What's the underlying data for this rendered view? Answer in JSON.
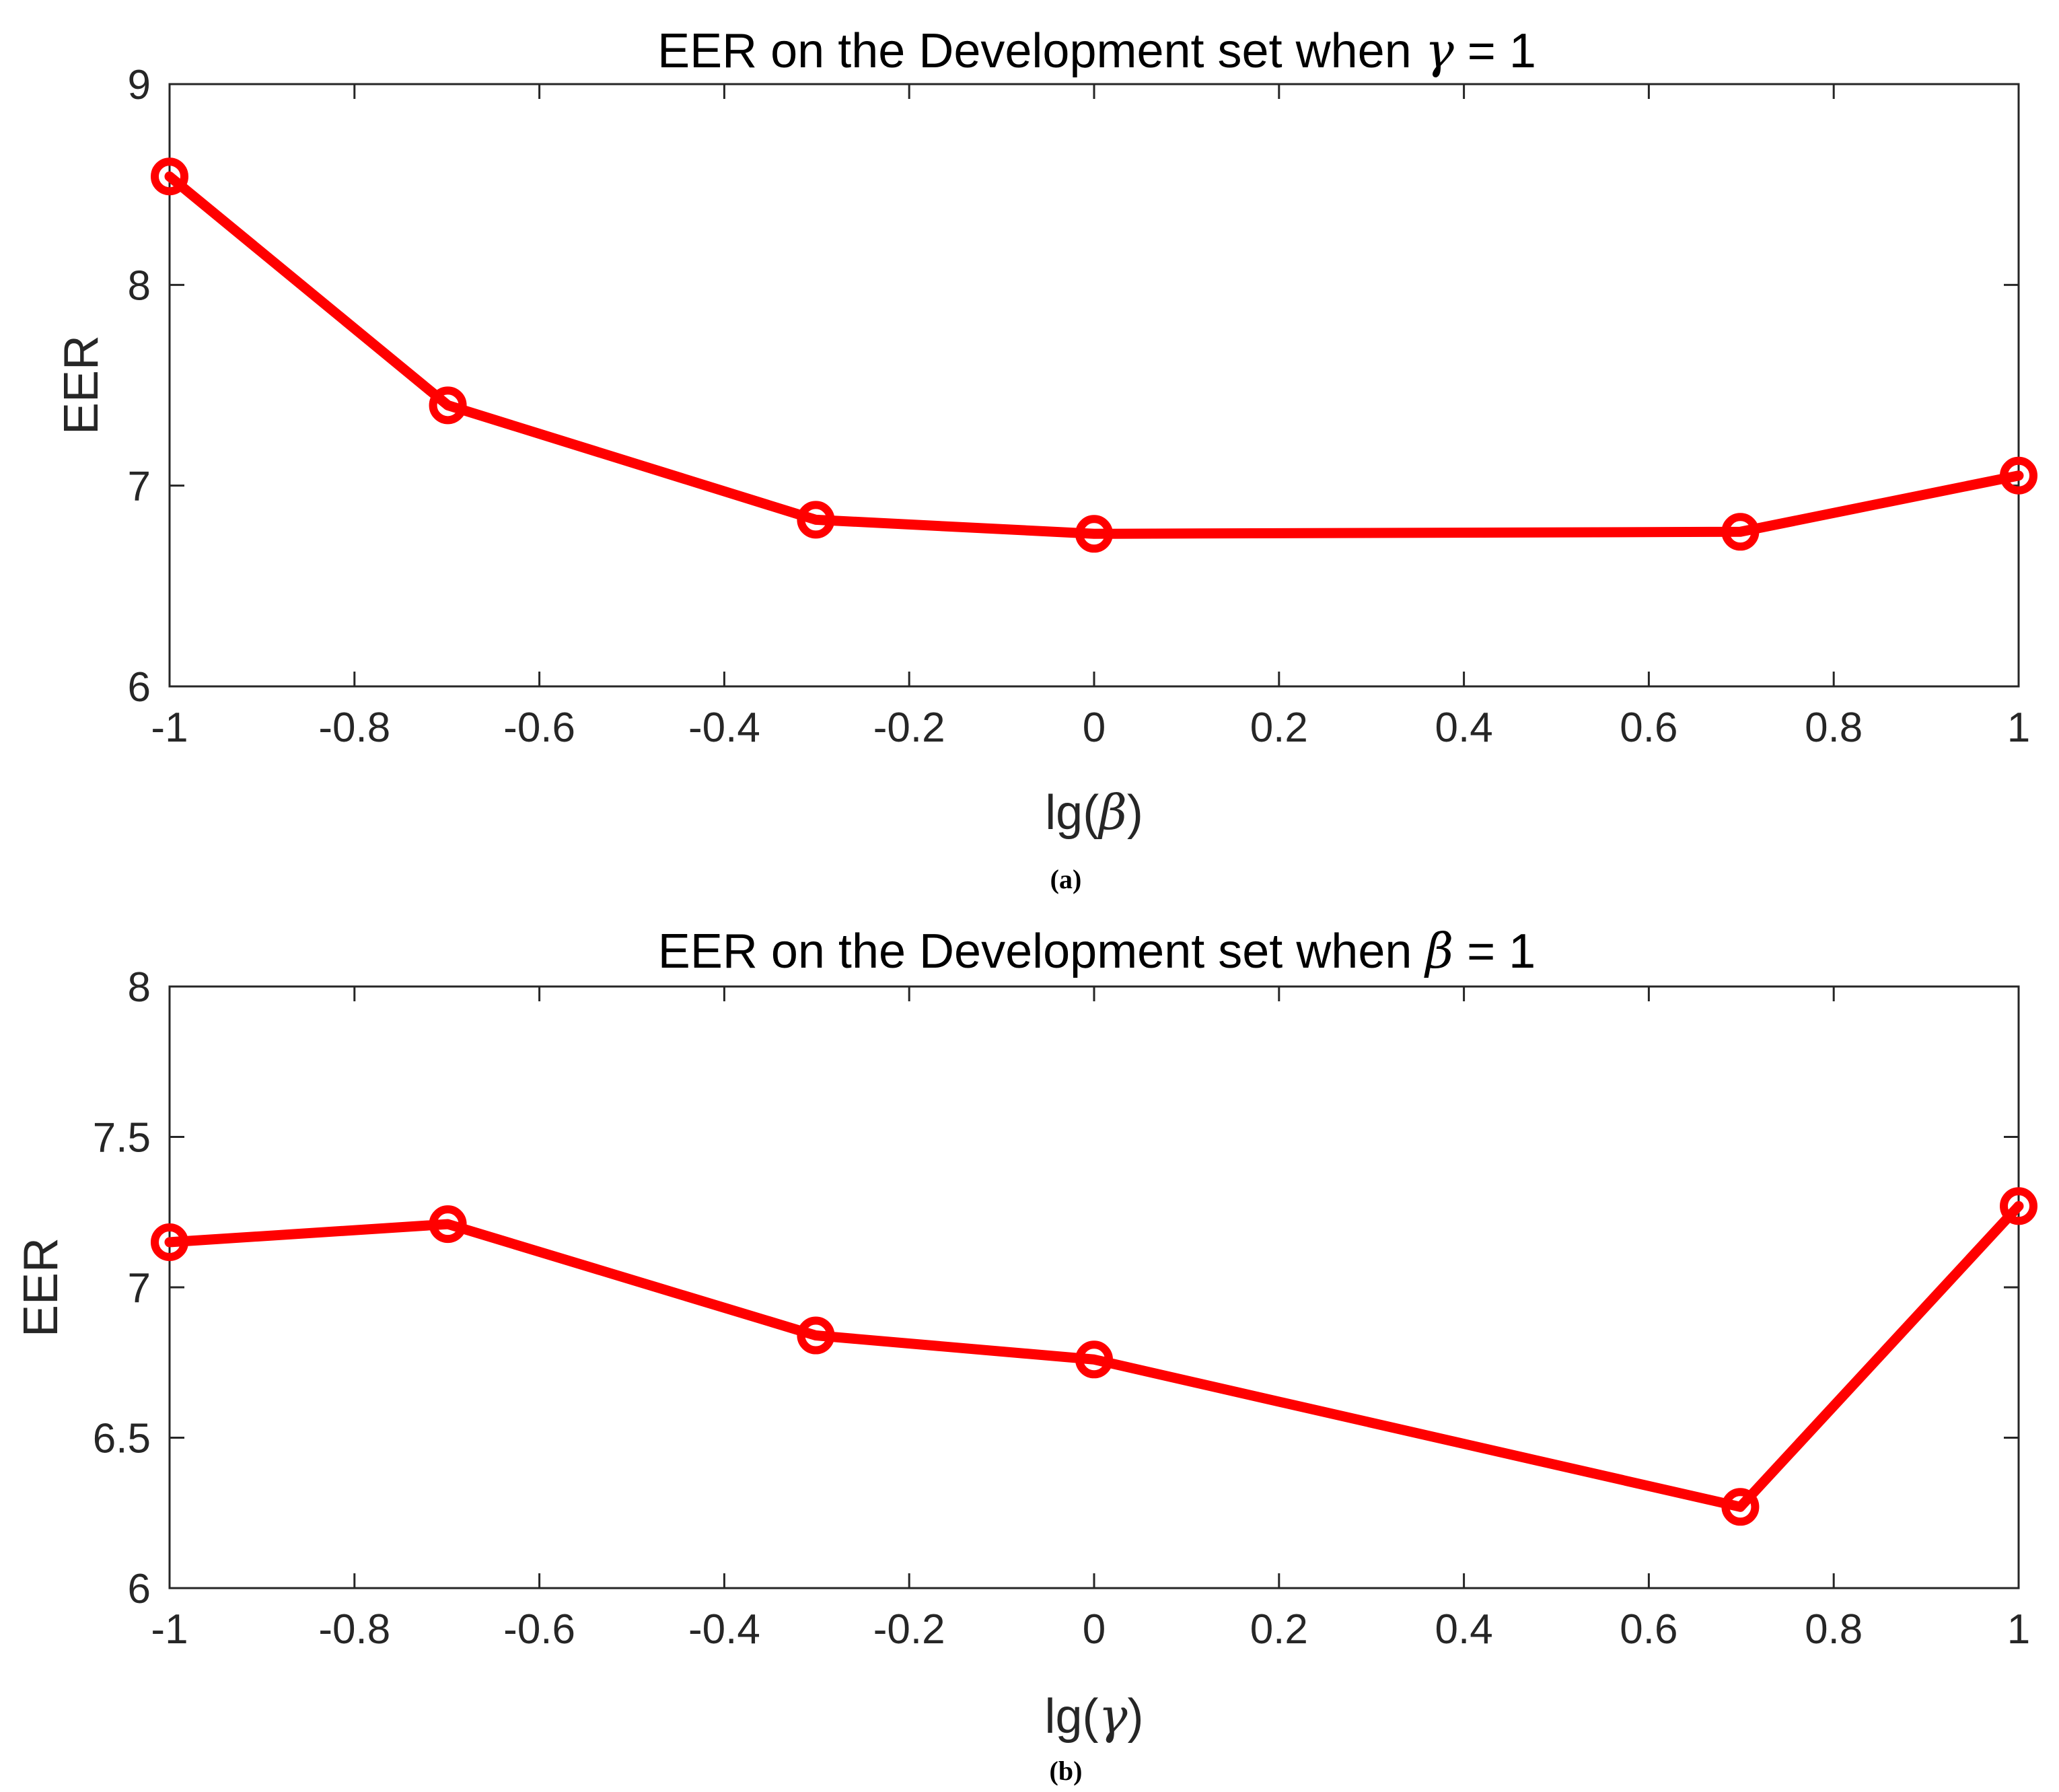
{
  "chart_data": [
    {
      "type": "line",
      "title_prefix": "EER on the Development set when ",
      "title_symbol": "γ",
      "title_suffix": " = 1",
      "xlabel_prefix": "lg(",
      "xlabel_symbol": "β",
      "xlabel_suffix": ")",
      "ylabel": "EER",
      "caption": "(a)",
      "xlim": [
        -1,
        1
      ],
      "ylim": [
        6,
        9
      ],
      "xticks": [
        -1,
        -0.8,
        -0.6,
        -0.4,
        -0.2,
        0,
        0.2,
        0.4,
        0.6,
        0.8,
        1
      ],
      "xtick_labels": [
        "-1",
        "-0.8",
        "-0.6",
        "-0.4",
        "-0.2",
        "0",
        "0.2",
        "0.4",
        "0.6",
        "0.8",
        "1"
      ],
      "yticks": [
        6,
        7,
        8,
        9
      ],
      "ytick_labels": [
        "6",
        "7",
        "8",
        "9"
      ],
      "grid": false,
      "color": "#ff0000",
      "marker": "circle",
      "x": [
        -1,
        -0.699,
        -0.301,
        0,
        0.699,
        1
      ],
      "y": [
        8.54,
        7.4,
        6.83,
        6.76,
        6.77,
        7.05
      ]
    },
    {
      "type": "line",
      "title_prefix": "EER on the Development set when ",
      "title_symbol": "β",
      "title_suffix": " = 1",
      "xlabel_prefix": "lg(",
      "xlabel_symbol": "γ",
      "xlabel_suffix": ")",
      "ylabel": "EER",
      "caption": "(b)",
      "xlim": [
        -1,
        1
      ],
      "ylim": [
        6,
        8
      ],
      "xticks": [
        -1,
        -0.8,
        -0.6,
        -0.4,
        -0.2,
        0,
        0.2,
        0.4,
        0.6,
        0.8,
        1
      ],
      "xtick_labels": [
        "-1",
        "-0.8",
        "-0.6",
        "-0.4",
        "-0.2",
        "0",
        "0.2",
        "0.4",
        "0.6",
        "0.8",
        "1"
      ],
      "yticks": [
        6,
        6.5,
        7,
        7.5,
        8
      ],
      "ytick_labels": [
        "6",
        "6.5",
        "7",
        "7.5",
        "8"
      ],
      "grid": false,
      "color": "#ff0000",
      "marker": "circle",
      "x": [
        -1,
        -0.699,
        -0.301,
        0,
        0.699,
        1
      ],
      "y": [
        7.15,
        7.21,
        6.84,
        6.76,
        6.27,
        7.27
      ]
    }
  ]
}
